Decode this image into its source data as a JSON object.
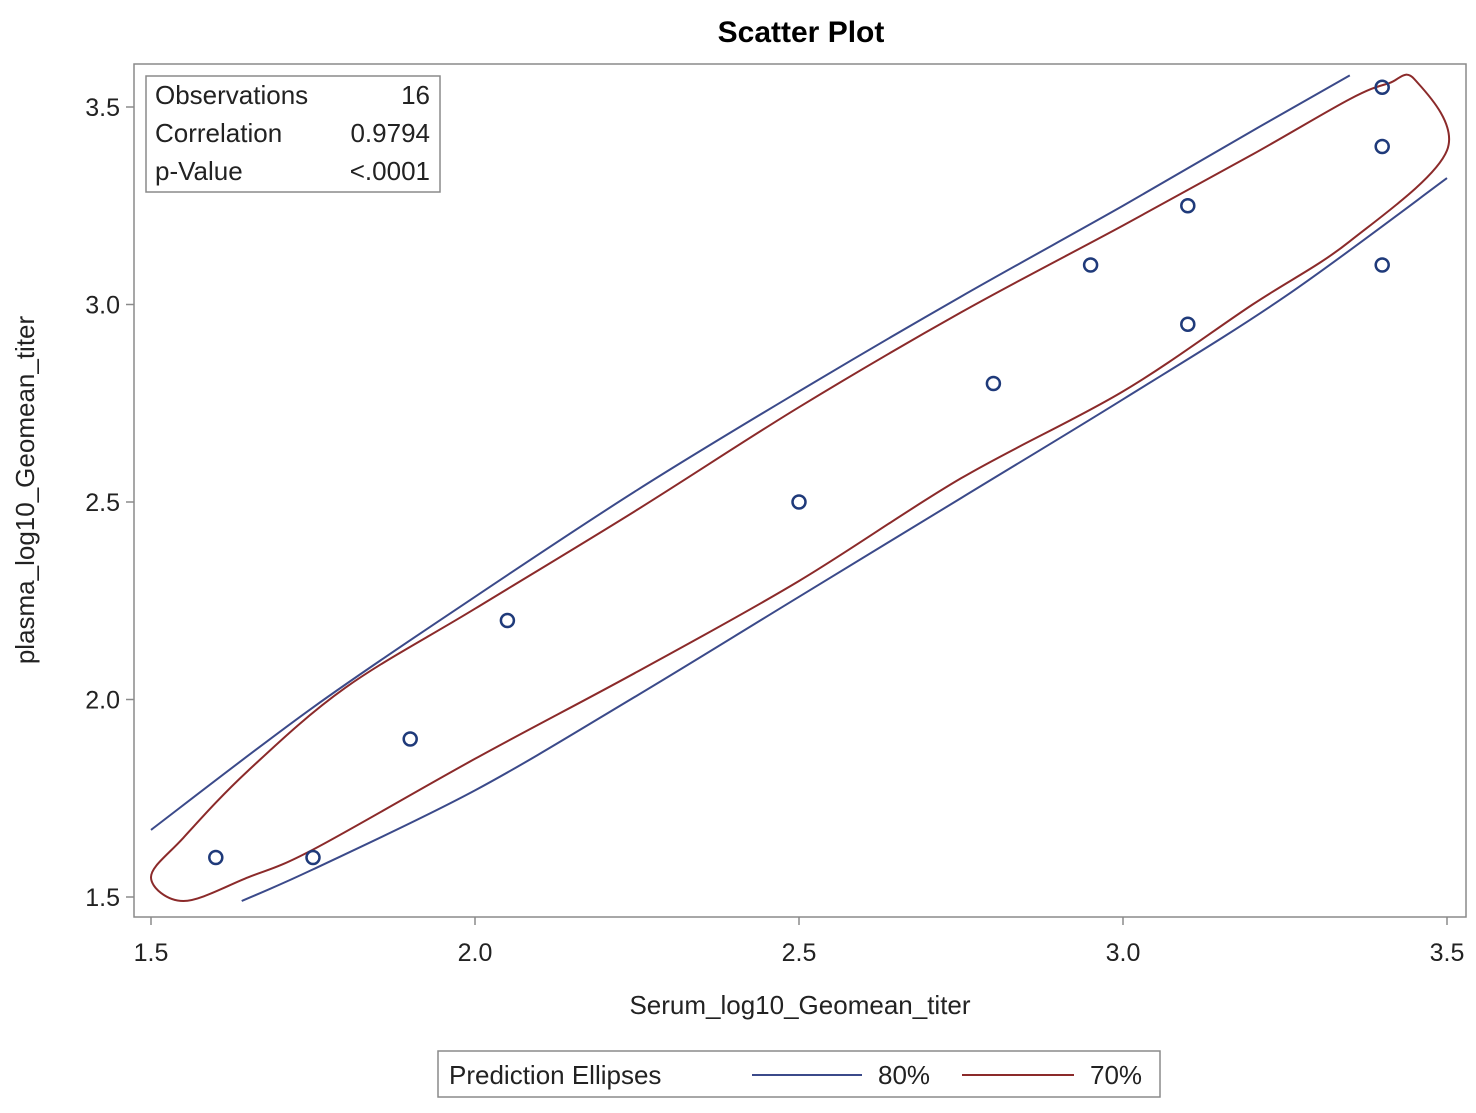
{
  "chart_data": {
    "type": "scatter",
    "title": "Scatter Plot",
    "xlabel": "Serum_log10_Geomean_titer",
    "ylabel": "plasma_log10_Geomean_titer",
    "xlim": [
      1.5,
      3.5
    ],
    "ylim": [
      1.46,
      3.61
    ],
    "x_ticks": [
      "1.5",
      "2.0",
      "2.5",
      "3.0",
      "3.5"
    ],
    "y_ticks": [
      "1.5",
      "2.0",
      "2.5",
      "3.0",
      "3.5"
    ],
    "grid": false,
    "points": [
      {
        "x": 1.6,
        "y": 1.6
      },
      {
        "x": 1.75,
        "y": 1.6
      },
      {
        "x": 1.9,
        "y": 1.9
      },
      {
        "x": 2.05,
        "y": 2.2
      },
      {
        "x": 2.5,
        "y": 2.5
      },
      {
        "x": 2.8,
        "y": 2.8
      },
      {
        "x": 2.95,
        "y": 3.1
      },
      {
        "x": 3.1,
        "y": 3.25
      },
      {
        "x": 3.1,
        "y": 2.95
      },
      {
        "x": 3.4,
        "y": 3.55
      },
      {
        "x": 3.4,
        "y": 3.4
      },
      {
        "x": 3.4,
        "y": 3.1
      }
    ],
    "point_color": "#1f3a7a",
    "stats": {
      "rows": [
        {
          "label": "Observations",
          "value": "16"
        },
        {
          "label": "Correlation",
          "value": "0.9794"
        },
        {
          "label": "p-Value",
          "value": "<.0001"
        }
      ],
      "placement": "top-left"
    },
    "legend": {
      "title": "Prediction Ellipses",
      "placement": "bottom",
      "entries": [
        {
          "label": "80%",
          "color": "#3b4a8a"
        },
        {
          "label": "70%",
          "color": "#8b2a2a"
        }
      ]
    },
    "ellipses": [
      {
        "label": "80%",
        "color": "#3b4a8a",
        "upper": [
          [
            1.5,
            1.67
          ],
          [
            1.75,
            1.98
          ],
          [
            2.0,
            2.26
          ],
          [
            2.25,
            2.53
          ],
          [
            2.5,
            2.78
          ],
          [
            2.75,
            3.02
          ],
          [
            3.0,
            3.25
          ],
          [
            3.2,
            3.44
          ],
          [
            3.35,
            3.58
          ]
        ],
        "lower": [
          [
            1.64,
            1.49
          ],
          [
            1.75,
            1.57
          ],
          [
            2.0,
            1.77
          ],
          [
            2.25,
            2.01
          ],
          [
            2.5,
            2.26
          ],
          [
            2.75,
            2.51
          ],
          [
            3.0,
            2.76
          ],
          [
            3.25,
            3.02
          ],
          [
            3.5,
            3.32
          ]
        ]
      },
      {
        "label": "70%",
        "color": "#8b2a2a",
        "closed": [
          [
            1.5,
            1.55
          ],
          [
            1.55,
            1.65
          ],
          [
            1.65,
            1.82
          ],
          [
            1.8,
            2.03
          ],
          [
            2.0,
            2.23
          ],
          [
            2.25,
            2.48
          ],
          [
            2.5,
            2.74
          ],
          [
            2.75,
            2.98
          ],
          [
            3.0,
            3.2
          ],
          [
            3.2,
            3.38
          ],
          [
            3.35,
            3.52
          ],
          [
            3.41,
            3.56
          ],
          [
            3.45,
            3.57
          ],
          [
            3.5,
            3.39
          ],
          [
            3.35,
            3.16
          ],
          [
            3.2,
            3.0
          ],
          [
            3.0,
            2.78
          ],
          [
            2.75,
            2.56
          ],
          [
            2.5,
            2.3
          ],
          [
            2.25,
            2.07
          ],
          [
            2.0,
            1.85
          ],
          [
            1.75,
            1.62
          ],
          [
            1.65,
            1.55
          ],
          [
            1.55,
            1.49
          ]
        ]
      }
    ]
  }
}
